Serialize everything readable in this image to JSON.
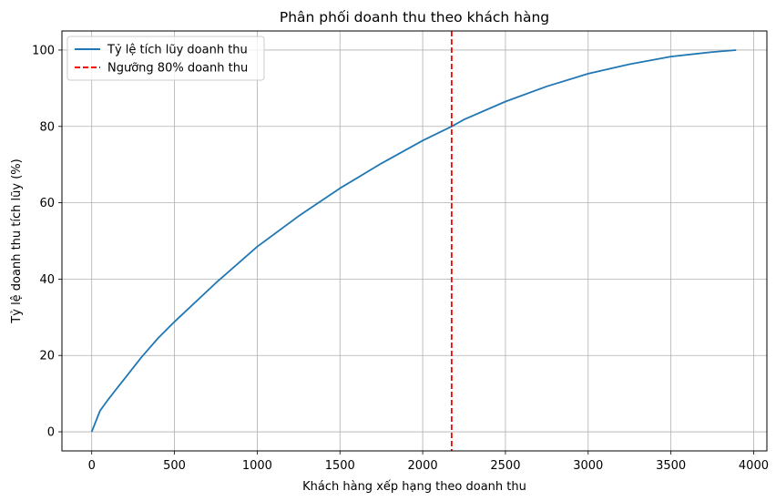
{
  "chart_data": {
    "type": "line",
    "title": "Phân phối doanh thu theo khách hàng",
    "xlabel": "Khách hàng xếp hạng theo doanh thu",
    "ylabel": "Tỷ lệ doanh thu tích lũy (%)",
    "xlim": [
      -180,
      4080
    ],
    "ylim": [
      -5,
      105
    ],
    "xticks": [
      0,
      500,
      1000,
      1500,
      2000,
      2500,
      3000,
      3500,
      4000
    ],
    "yticks": [
      0,
      20,
      40,
      60,
      80,
      100
    ],
    "grid": true,
    "legend_position": "top-left",
    "series": [
      {
        "name": "Tỷ lệ tích lũy doanh thu",
        "color": "#1f77b4",
        "style": "solid",
        "x": [
          0,
          50,
          100,
          200,
          300,
          400,
          500,
          750,
          1000,
          1250,
          1500,
          1750,
          2000,
          2175,
          2250,
          2500,
          2750,
          3000,
          3250,
          3500,
          3750,
          3894
        ],
        "y": [
          0,
          5.5,
          8.5,
          14,
          19.5,
          24.5,
          28.8,
          39,
          48.5,
          56.5,
          63.8,
          70.3,
          76.3,
          80,
          81.8,
          86.5,
          90.5,
          93.8,
          96.3,
          98.3,
          99.5,
          100
        ]
      },
      {
        "name": "Ngưỡng 80% doanh thu",
        "color": "#ff0000",
        "style": "dashed",
        "vertical_line_x": 2175
      }
    ]
  }
}
